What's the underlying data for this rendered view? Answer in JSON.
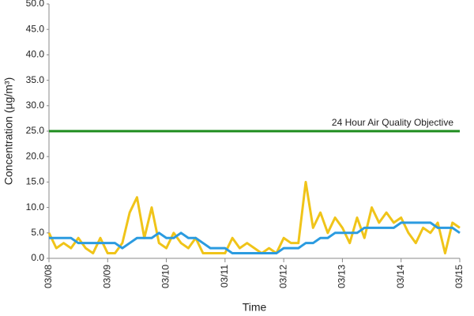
{
  "chart_data": {
    "type": "line",
    "x_label": "Time",
    "y_label": "Concentration (µg/m³)",
    "x": [
      0,
      0.125,
      0.25,
      0.375,
      0.5,
      0.625,
      0.75,
      0.875,
      1,
      1.125,
      1.25,
      1.375,
      1.5,
      1.625,
      1.75,
      1.875,
      2,
      2.125,
      2.25,
      2.375,
      2.5,
      2.625,
      2.75,
      2.875,
      3,
      3.125,
      3.25,
      3.375,
      3.5,
      3.625,
      3.75,
      3.875,
      4,
      4.125,
      4.25,
      4.375,
      4.5,
      4.625,
      4.75,
      4.875,
      5,
      5.125,
      5.25,
      5.375,
      5.5,
      5.625,
      5.75,
      5.875,
      6,
      6.125,
      6.25,
      6.375,
      6.5,
      6.625,
      6.75,
      6.875,
      7
    ],
    "series": [
      {
        "color": "#f0c419",
        "values": [
          5,
          2,
          3,
          2,
          4,
          2,
          1,
          4,
          1,
          1,
          3,
          9,
          12,
          4,
          10,
          3,
          2,
          5,
          3,
          2,
          4,
          1,
          1,
          1,
          1,
          4,
          2,
          3,
          2,
          1,
          2,
          1,
          4,
          3,
          3,
          15,
          6,
          9,
          5,
          8,
          6,
          3,
          8,
          4,
          10,
          7,
          9,
          7,
          8,
          5,
          3,
          6,
          5,
          7,
          1,
          7,
          6
        ]
      },
      {
        "color": "#2b9be0",
        "values": [
          4,
          4,
          4,
          4,
          3,
          3,
          3,
          3,
          3,
          3,
          2,
          3,
          4,
          4,
          4,
          5,
          4,
          4,
          5,
          4,
          4,
          3,
          2,
          2,
          2,
          1,
          1,
          1,
          1,
          1,
          1,
          1,
          2,
          2,
          2,
          3,
          3,
          4,
          4,
          5,
          5,
          5,
          5,
          6,
          6,
          6,
          6,
          6,
          7,
          7,
          7,
          7,
          7,
          6,
          6,
          6,
          5
        ]
      }
    ],
    "reference_line": {
      "value": 25,
      "label": "24 Hour Air Quality Objective",
      "color": "#1e8c1e"
    },
    "xlim": [
      0,
      7
    ],
    "xticks": [
      {
        "value": 0,
        "label": "03/08"
      },
      {
        "value": 1,
        "label": "03/09"
      },
      {
        "value": 2,
        "label": "03/10"
      },
      {
        "value": 3,
        "label": "03/11"
      },
      {
        "value": 4,
        "label": "03/12"
      },
      {
        "value": 5,
        "label": "03/13"
      },
      {
        "value": 6,
        "label": "03/14"
      },
      {
        "value": 7,
        "label": "03/15"
      }
    ],
    "ylim": [
      0,
      50
    ],
    "yticks": [
      {
        "value": 0,
        "label": "0.0"
      },
      {
        "value": 5,
        "label": "5.0"
      },
      {
        "value": 10,
        "label": "10.0"
      },
      {
        "value": 15,
        "label": "15.0"
      },
      {
        "value": 20,
        "label": "20.0"
      },
      {
        "value": 25,
        "label": "25.0"
      },
      {
        "value": 30,
        "label": "30.0"
      },
      {
        "value": 35,
        "label": "35.0"
      },
      {
        "value": 40,
        "label": "40.0"
      },
      {
        "value": 45,
        "label": "45.0"
      },
      {
        "value": 50,
        "label": "50.0"
      }
    ],
    "grid": false
  }
}
